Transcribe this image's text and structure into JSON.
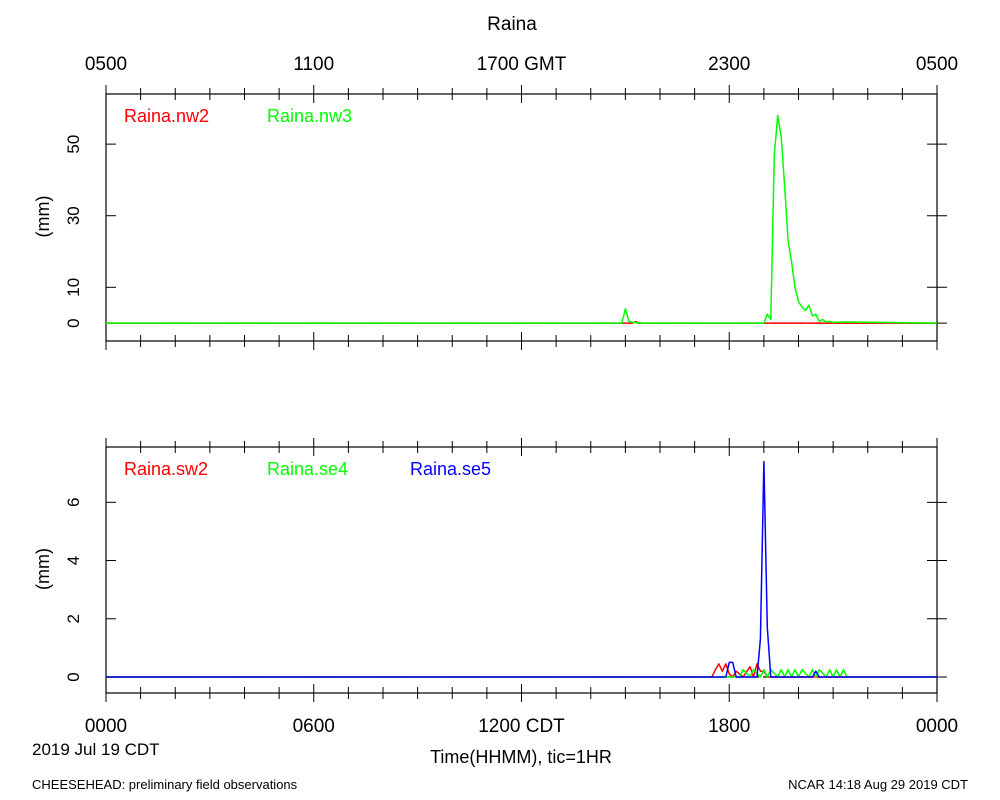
{
  "title": "Raina",
  "top_axis_labels": [
    "0500",
    "1100",
    "1700 GMT",
    "2300",
    "0500"
  ],
  "bottom_axis_labels": [
    "0000",
    "0600",
    "1200 CDT",
    "1800",
    "0000"
  ],
  "date_label": "2019 Jul 19 CDT",
  "xlabel": "Time(HHMM), tic=1HR",
  "footer_left": "CHEESEHEAD: preliminary field observations",
  "footer_right": "NCAR 14:18 Aug 29 2019 CDT",
  "chart_data": [
    {
      "type": "line",
      "ylabel": "(mm)",
      "ylim": [
        -5,
        64
      ],
      "yticks": [
        0,
        10,
        30,
        50
      ],
      "xlim": [
        0,
        24
      ],
      "x_unit": "hours CDT",
      "series": [
        {
          "name": "Raina.nw2",
          "color": "#ff0000",
          "x": [
            0,
            15.0,
            15.2,
            15.3,
            15.4,
            15.5,
            24
          ],
          "y": [
            0,
            0,
            0,
            0.4,
            0,
            0,
            0
          ]
        },
        {
          "name": "Raina.nw3",
          "color": "#00ff00",
          "x": [
            0,
            14.9,
            15.0,
            15.1,
            15.2,
            15.5,
            19.0,
            19.1,
            19.2,
            19.3,
            19.4,
            19.5,
            19.6,
            19.7,
            19.8,
            19.9,
            20.0,
            20.1,
            20.2,
            20.3,
            20.4,
            20.5,
            20.6,
            20.7,
            20.8,
            20.9,
            21.0,
            21.3,
            24
          ],
          "y": [
            0,
            0,
            4,
            0.6,
            0.2,
            0,
            0,
            2.5,
            1,
            47,
            58,
            52,
            38,
            23,
            17,
            10,
            6,
            4.5,
            3.5,
            5,
            2,
            2.5,
            0.5,
            1,
            0.3,
            0.5,
            0.2,
            0.3,
            0
          ]
        }
      ]
    },
    {
      "type": "line",
      "ylabel": "(mm)",
      "ylim": [
        -0.55,
        7.9
      ],
      "yticks": [
        0,
        2,
        4,
        6
      ],
      "xlim": [
        0,
        24
      ],
      "x_unit": "hours CDT",
      "series": [
        {
          "name": "Raina.sw2",
          "color": "#ff0000",
          "x": [
            0,
            17.5,
            17.6,
            17.7,
            17.8,
            17.9,
            18.0,
            18.1,
            18.2,
            18.4,
            18.6,
            18.7,
            18.8,
            18.9,
            19.0,
            19.1,
            19.3,
            24
          ],
          "y": [
            0,
            0,
            0.25,
            0.45,
            0.2,
            0.45,
            0.1,
            0,
            0.2,
            0,
            0.35,
            0,
            0.45,
            0.2,
            0.2,
            0,
            0,
            0
          ]
        },
        {
          "name": "Raina.se4",
          "color": "#00ff00",
          "x": [
            0,
            18.3,
            18.4,
            18.6,
            18.7,
            18.9,
            19.0,
            19.1,
            19.2,
            19.4,
            19.5,
            19.6,
            19.7,
            19.8,
            19.9,
            20.0,
            20.1,
            20.3,
            20.4,
            20.5,
            20.6,
            20.8,
            20.9,
            21.0,
            21.1,
            21.2,
            21.3,
            21.4,
            24
          ],
          "y": [
            0,
            0,
            0.25,
            0,
            0.25,
            0,
            0.25,
            0,
            0.25,
            0,
            0.25,
            0,
            0.25,
            0,
            0.25,
            0,
            0.25,
            0,
            0.25,
            0,
            0.25,
            0,
            0.25,
            0,
            0.25,
            0,
            0.25,
            0,
            0
          ]
        },
        {
          "name": "Raina.se5",
          "color": "#0000ff",
          "x": [
            0,
            17.9,
            18.0,
            18.1,
            18.2,
            18.8,
            18.9,
            19.0,
            19.1,
            19.2,
            20.4,
            20.5,
            20.6,
            24
          ],
          "y": [
            0,
            0,
            0.5,
            0.5,
            0,
            0,
            1.3,
            7.4,
            1.7,
            0,
            0,
            0.2,
            0,
            0
          ]
        }
      ]
    }
  ]
}
